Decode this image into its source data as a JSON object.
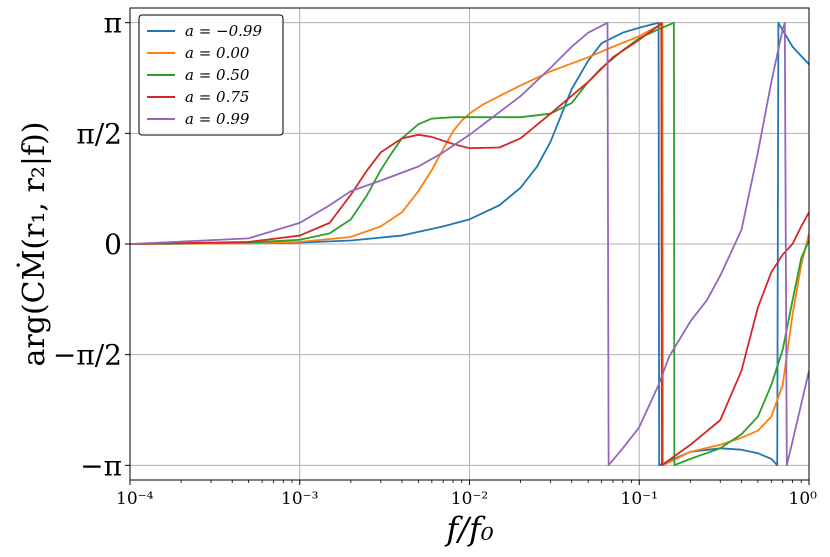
{
  "chart_data": {
    "type": "line",
    "title": "",
    "xlabel": "f/f₀",
    "ylabel": "arg(CṀ(r₁, r₂|f))",
    "x_scale": "log",
    "xlim": [
      0.0001,
      1
    ],
    "ylim": [
      -3.35,
      3.35
    ],
    "grid": true,
    "legend_position": "top-left",
    "x_ticks": [
      {
        "value": 0.0001,
        "label": "10⁻⁴"
      },
      {
        "value": 0.001,
        "label": "10⁻³"
      },
      {
        "value": 0.01,
        "label": "10⁻²"
      },
      {
        "value": 0.1,
        "label": "10⁻¹"
      },
      {
        "value": 1,
        "label": "10⁰"
      }
    ],
    "y_ticks": [
      {
        "value": 3.14159,
        "label": "π"
      },
      {
        "value": 1.5708,
        "label": "π/2"
      },
      {
        "value": 0,
        "label": "0"
      },
      {
        "value": -1.5708,
        "label": "−π/2"
      },
      {
        "value": -3.14159,
        "label": "−π"
      }
    ],
    "series": [
      {
        "name": "a = −0.99",
        "color": "#1f77b4",
        "points": [
          [
            0.0001,
            0.0
          ],
          [
            0.0003,
            0.005
          ],
          [
            0.001,
            0.02
          ],
          [
            0.002,
            0.05
          ],
          [
            0.004,
            0.12
          ],
          [
            0.007,
            0.25
          ],
          [
            0.01,
            0.35
          ],
          [
            0.015,
            0.55
          ],
          [
            0.02,
            0.8
          ],
          [
            0.025,
            1.1
          ],
          [
            0.03,
            1.45
          ],
          [
            0.035,
            1.85
          ],
          [
            0.04,
            2.2
          ],
          [
            0.05,
            2.6
          ],
          [
            0.06,
            2.85
          ],
          [
            0.08,
            3.0
          ],
          [
            0.1,
            3.07
          ],
          [
            0.12,
            3.12
          ],
          [
            0.13,
            3.14
          ],
          [
            0.131,
            -3.14
          ],
          [
            0.2,
            -2.95
          ],
          [
            0.3,
            -2.9
          ],
          [
            0.4,
            -2.92
          ],
          [
            0.5,
            -2.97
          ],
          [
            0.6,
            -3.05
          ],
          [
            0.65,
            -3.14
          ],
          [
            0.66,
            3.14
          ],
          [
            0.8,
            2.8
          ],
          [
            1.0,
            2.55
          ]
        ]
      },
      {
        "name": "a = 0.00",
        "color": "#ff7f0e",
        "points": [
          [
            0.0001,
            0.0
          ],
          [
            0.0005,
            0.01
          ],
          [
            0.001,
            0.03
          ],
          [
            0.002,
            0.1
          ],
          [
            0.003,
            0.25
          ],
          [
            0.004,
            0.45
          ],
          [
            0.005,
            0.75
          ],
          [
            0.006,
            1.05
          ],
          [
            0.007,
            1.35
          ],
          [
            0.008,
            1.6
          ],
          [
            0.009,
            1.75
          ],
          [
            0.01,
            1.85
          ],
          [
            0.012,
            1.98
          ],
          [
            0.015,
            2.1
          ],
          [
            0.02,
            2.25
          ],
          [
            0.03,
            2.45
          ],
          [
            0.05,
            2.65
          ],
          [
            0.07,
            2.8
          ],
          [
            0.1,
            2.95
          ],
          [
            0.13,
            3.1
          ],
          [
            0.137,
            3.14
          ],
          [
            0.138,
            -3.14
          ],
          [
            0.2,
            -2.95
          ],
          [
            0.3,
            -2.85
          ],
          [
            0.4,
            -2.75
          ],
          [
            0.5,
            -2.65
          ],
          [
            0.6,
            -2.45
          ],
          [
            0.7,
            -2.0
          ],
          [
            0.8,
            -1.0
          ],
          [
            0.9,
            -0.3
          ],
          [
            1.0,
            0.15
          ]
        ]
      },
      {
        "name": "a = 0.50",
        "color": "#2ca02c",
        "points": [
          [
            0.0001,
            0.0
          ],
          [
            0.0005,
            0.02
          ],
          [
            0.001,
            0.06
          ],
          [
            0.0015,
            0.15
          ],
          [
            0.002,
            0.35
          ],
          [
            0.0025,
            0.7
          ],
          [
            0.003,
            1.05
          ],
          [
            0.0035,
            1.3
          ],
          [
            0.004,
            1.5
          ],
          [
            0.005,
            1.7
          ],
          [
            0.006,
            1.78
          ],
          [
            0.008,
            1.8
          ],
          [
            0.01,
            1.8
          ],
          [
            0.02,
            1.8
          ],
          [
            0.03,
            1.85
          ],
          [
            0.04,
            2.0
          ],
          [
            0.05,
            2.3
          ],
          [
            0.06,
            2.5
          ],
          [
            0.08,
            2.75
          ],
          [
            0.1,
            2.92
          ],
          [
            0.13,
            3.05
          ],
          [
            0.16,
            3.14
          ],
          [
            0.161,
            -3.14
          ],
          [
            0.2,
            -3.05
          ],
          [
            0.3,
            -2.9
          ],
          [
            0.4,
            -2.7
          ],
          [
            0.5,
            -2.45
          ],
          [
            0.6,
            -2.0
          ],
          [
            0.7,
            -1.5
          ],
          [
            0.8,
            -0.8
          ],
          [
            0.9,
            -0.2
          ],
          [
            1.0,
            0.05
          ]
        ]
      },
      {
        "name": "a = 0.75",
        "color": "#d62728",
        "points": [
          [
            0.0001,
            0.0
          ],
          [
            0.0005,
            0.03
          ],
          [
            0.001,
            0.12
          ],
          [
            0.0015,
            0.3
          ],
          [
            0.002,
            0.7
          ],
          [
            0.0025,
            1.05
          ],
          [
            0.003,
            1.3
          ],
          [
            0.004,
            1.5
          ],
          [
            0.005,
            1.55
          ],
          [
            0.006,
            1.52
          ],
          [
            0.008,
            1.42
          ],
          [
            0.01,
            1.36
          ],
          [
            0.015,
            1.37
          ],
          [
            0.02,
            1.5
          ],
          [
            0.03,
            1.85
          ],
          [
            0.05,
            2.3
          ],
          [
            0.07,
            2.65
          ],
          [
            0.1,
            2.9
          ],
          [
            0.13,
            3.1
          ],
          [
            0.135,
            3.14
          ],
          [
            0.136,
            -3.14
          ],
          [
            0.2,
            -2.85
          ],
          [
            0.3,
            -2.5
          ],
          [
            0.4,
            -1.8
          ],
          [
            0.5,
            -0.9
          ],
          [
            0.6,
            -0.4
          ],
          [
            0.7,
            -0.15
          ],
          [
            0.8,
            0.0
          ],
          [
            0.9,
            0.25
          ],
          [
            1.0,
            0.45
          ]
        ]
      },
      {
        "name": "a = 0.99",
        "color": "#9467bd",
        "points": [
          [
            0.0001,
            0.0
          ],
          [
            0.0005,
            0.08
          ],
          [
            0.001,
            0.3
          ],
          [
            0.0015,
            0.55
          ],
          [
            0.002,
            0.75
          ],
          [
            0.003,
            0.9
          ],
          [
            0.005,
            1.1
          ],
          [
            0.007,
            1.3
          ],
          [
            0.01,
            1.55
          ],
          [
            0.02,
            2.1
          ],
          [
            0.03,
            2.5
          ],
          [
            0.04,
            2.8
          ],
          [
            0.05,
            3.0
          ],
          [
            0.065,
            3.14
          ],
          [
            0.066,
            -3.14
          ],
          [
            0.08,
            -2.9
          ],
          [
            0.1,
            -2.6
          ],
          [
            0.13,
            -2.0
          ],
          [
            0.15,
            -1.6
          ],
          [
            0.2,
            -1.1
          ],
          [
            0.25,
            -0.8
          ],
          [
            0.3,
            -0.45
          ],
          [
            0.4,
            0.2
          ],
          [
            0.5,
            1.3
          ],
          [
            0.6,
            2.3
          ],
          [
            0.7,
            3.05
          ],
          [
            0.72,
            3.14
          ],
          [
            0.74,
            -3.14
          ],
          [
            0.8,
            -2.8
          ],
          [
            1.0,
            -1.8
          ]
        ]
      }
    ]
  }
}
